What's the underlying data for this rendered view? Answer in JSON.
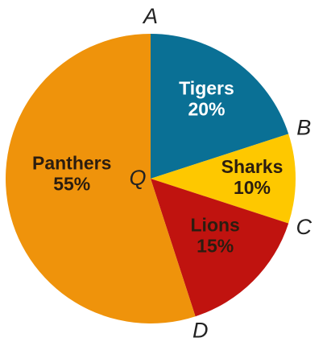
{
  "chart_data": {
    "type": "pie",
    "categories": [
      "Tigers",
      "Sharks",
      "Lions",
      "Panthers"
    ],
    "values": [
      20,
      10,
      15,
      55
    ],
    "value_labels": [
      "20%",
      "10%",
      "15%",
      "55%"
    ],
    "colors": [
      "#0a7095",
      "#fec800",
      "#c0130f",
      "#ef930b"
    ],
    "label_colors": [
      "#ffffff",
      "#2b1d10",
      "#2b1d10",
      "#2b1d10"
    ],
    "points": [
      "A",
      "B",
      "C",
      "D"
    ],
    "center_label": "Q"
  }
}
